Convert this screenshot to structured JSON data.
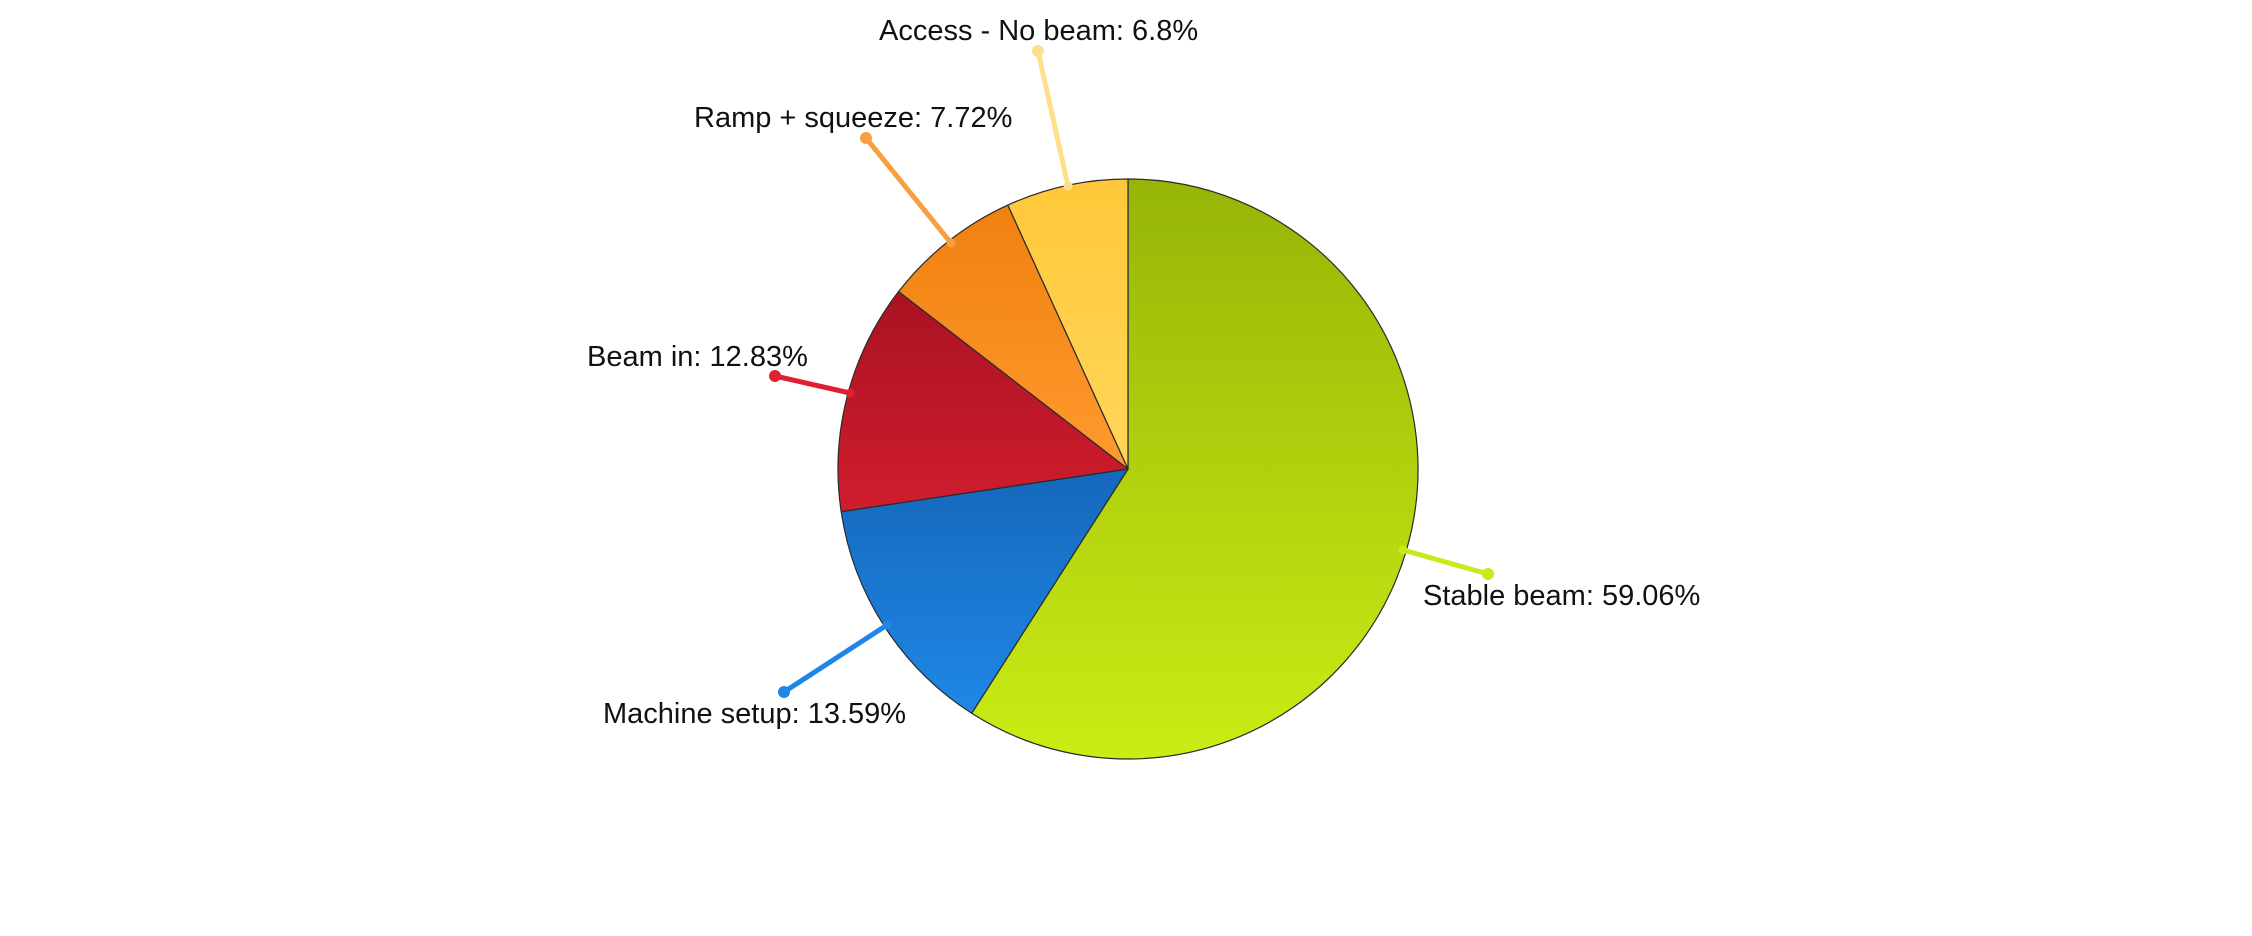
{
  "chart_data": {
    "type": "pie",
    "start_angle": "12 o'clock",
    "direction": "clockwise",
    "slices": [
      {
        "label": "Stable beam",
        "value": 59.06,
        "display": "Stable beam: 59.06%",
        "color": "#b7d611",
        "color_light": "#cbec15",
        "color_dark": "#96b507",
        "leader_color": "#c8ea1a"
      },
      {
        "label": "Machine setup",
        "value": 13.59,
        "display": "Machine setup: 13.59%",
        "color": "#1a7bd6",
        "color_light": "#1f87e6",
        "color_dark": "#1568bb",
        "leader_color": "#2086e6"
      },
      {
        "label": "Beam in",
        "value": 12.83,
        "display": "Beam in: 12.83%",
        "color": "#c31828",
        "color_light": "#cf1d2e",
        "color_dark": "#aa1222",
        "leader_color": "#e02030"
      },
      {
        "label": "Ramp + squeeze",
        "value": 7.72,
        "display": "Ramp + squeeze: 7.72%",
        "color": "#ff8f1a",
        "color_light": "#ff9a2e",
        "color_dark": "#f08010",
        "leader_color": "#f8a040"
      },
      {
        "label": "Access - No beam",
        "value": 6.8,
        "display": "Access - No beam: 6.8%",
        "color": "#ffd04a",
        "color_light": "#ffd65a",
        "color_dark": "#ffc83a",
        "leader_color": "#ffe08a"
      }
    ]
  }
}
